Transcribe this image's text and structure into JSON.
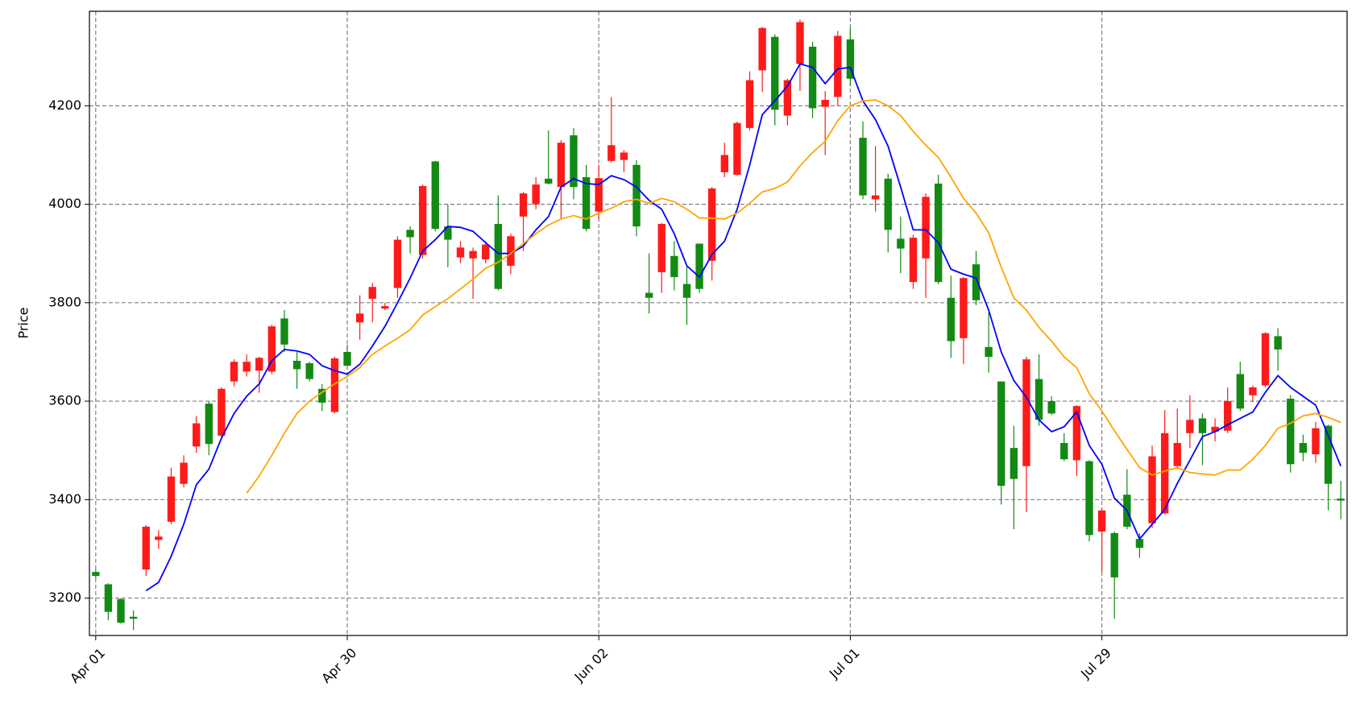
{
  "chart_data": {
    "type": "candlestick",
    "y_label": "Price",
    "categories": [
      "Apr 01",
      null,
      null,
      null,
      null,
      null,
      null,
      null,
      null,
      null,
      null,
      null,
      null,
      null,
      null,
      null,
      null,
      null,
      null,
      null,
      "Apr 30",
      null,
      null,
      null,
      null,
      null,
      null,
      null,
      null,
      null,
      null,
      null,
      null,
      null,
      null,
      null,
      null,
      null,
      null,
      null,
      "Jun 02",
      null,
      null,
      null,
      null,
      null,
      null,
      null,
      null,
      null,
      null,
      null,
      null,
      null,
      null,
      null,
      null,
      null,
      null,
      null,
      "Jul 01",
      null,
      null,
      null,
      null,
      null,
      null,
      null,
      null,
      null,
      null,
      null,
      null,
      null,
      null,
      null,
      null,
      null,
      null,
      null,
      "Jul 29",
      null,
      null,
      null,
      null,
      null,
      null,
      null,
      null,
      null,
      null,
      null,
      null,
      null,
      null,
      null,
      null,
      null,
      null,
      null
    ],
    "open": [
      3253,
      3228,
      3198,
      3162,
      3258,
      3318,
      3355,
      3432,
      3508,
      3595,
      3530,
      3640,
      3660,
      3662,
      3660,
      3768,
      3682,
      3677,
      3625,
      3578,
      3700,
      3760,
      3808,
      3788,
      3830,
      3948,
      3897,
      4087,
      3955,
      3892,
      3890,
      3888,
      3960,
      3875,
      3975,
      4000,
      4052,
      4035,
      4140,
      4055,
      3985,
      4088,
      4090,
      4080,
      3820,
      3862,
      3895,
      3838,
      3920,
      3885,
      4065,
      4060,
      4155,
      4272,
      4340,
      4180,
      4285,
      4320,
      4198,
      4218,
      4335,
      4135,
      4010,
      4052,
      3930,
      3842,
      3890,
      4042,
      3810,
      3728,
      3878,
      3710,
      3640,
      3505,
      3468,
      3645,
      3600,
      3515,
      3480,
      3478,
      3335,
      3332,
      3410,
      3320,
      3352,
      3372,
      3468,
      3535,
      3565,
      3538,
      3540,
      3655,
      3612,
      3632,
      3732,
      3605,
      3515,
      3492,
      3550,
      3402
    ],
    "high": [
      3258,
      3230,
      3200,
      3175,
      3348,
      3338,
      3465,
      3490,
      3570,
      3600,
      3628,
      3685,
      3695,
      3690,
      3755,
      3785,
      3700,
      3680,
      3635,
      3690,
      3715,
      3815,
      3840,
      3800,
      3935,
      3955,
      4040,
      4088,
      4000,
      3925,
      3912,
      3925,
      4018,
      3940,
      4025,
      4055,
      4150,
      4130,
      4155,
      4080,
      4080,
      4218,
      4110,
      4090,
      3900,
      3962,
      3925,
      3875,
      3920,
      4035,
      4125,
      4168,
      4270,
      4360,
      4345,
      4255,
      4375,
      4330,
      4230,
      4352,
      4358,
      4168,
      4118,
      4062,
      3975,
      3938,
      4022,
      4060,
      3855,
      3852,
      3905,
      3780,
      3640,
      3550,
      3690,
      3695,
      3610,
      3535,
      3592,
      3480,
      3380,
      3335,
      3462,
      3332,
      3510,
      3582,
      3585,
      3612,
      3575,
      3565,
      3628,
      3680,
      3632,
      3740,
      3748,
      3612,
      3532,
      3558,
      3552,
      3438
    ],
    "low": [
      3240,
      3155,
      3148,
      3135,
      3245,
      3300,
      3350,
      3425,
      3495,
      3490,
      3525,
      3630,
      3650,
      3617,
      3655,
      3700,
      3625,
      3640,
      3580,
      3575,
      3670,
      3725,
      3760,
      3785,
      3810,
      3900,
      3890,
      3945,
      3872,
      3880,
      3808,
      3880,
      3825,
      3858,
      3905,
      3990,
      4040,
      3970,
      4010,
      3945,
      3970,
      4085,
      4065,
      3935,
      3778,
      3820,
      3825,
      3755,
      3820,
      3845,
      4055,
      4058,
      4150,
      4228,
      4160,
      4160,
      4230,
      4175,
      4100,
      4200,
      4240,
      4010,
      3985,
      3902,
      3860,
      3828,
      3810,
      3838,
      3688,
      3675,
      3795,
      3658,
      3390,
      3340,
      3375,
      3550,
      3572,
      3478,
      3448,
      3315,
      3252,
      3158,
      3340,
      3282,
      3342,
      3370,
      3462,
      3505,
      3470,
      3518,
      3535,
      3580,
      3598,
      3628,
      3662,
      3455,
      3478,
      3475,
      3378,
      3360
    ],
    "close": [
      3245,
      3172,
      3150,
      3158,
      3345,
      3325,
      3447,
      3475,
      3555,
      3513,
      3625,
      3680,
      3680,
      3688,
      3752,
      3715,
      3665,
      3645,
      3597,
      3687,
      3672,
      3778,
      3832,
      3793,
      3928,
      3933,
      4037,
      3950,
      3928,
      3912,
      3905,
      3918,
      3828,
      3935,
      4022,
      4040,
      4042,
      4125,
      4035,
      3950,
      4053,
      4120,
      4105,
      3955,
      3810,
      3960,
      3852,
      3810,
      3828,
      4032,
      4100,
      4165,
      4252,
      4358,
      4192,
      4252,
      4370,
      4195,
      4212,
      4342,
      4255,
      4018,
      4018,
      3948,
      3910,
      3932,
      4015,
      3842,
      3722,
      3850,
      3805,
      3690,
      3428,
      3442,
      3685,
      3562,
      3575,
      3482,
      3590,
      3328,
      3378,
      3242,
      3345,
      3302,
      3488,
      3535,
      3515,
      3562,
      3535,
      3548,
      3600,
      3585,
      3628,
      3738,
      3705,
      3472,
      3495,
      3545,
      3432,
      3398
    ],
    "up_color": "#ff1a1a",
    "down_color": "#138a13",
    "lines": [
      {
        "color": "#0000ff",
        "values": [
          null,
          null,
          null,
          null,
          3215,
          3232,
          3285,
          3350,
          3430,
          3462,
          3525,
          3575,
          3610,
          3635,
          3682,
          3705,
          3702,
          3695,
          3672,
          3662,
          3655,
          3675,
          3712,
          3752,
          3800,
          3850,
          3905,
          3928,
          3955,
          3953,
          3945,
          3922,
          3900,
          3900,
          3915,
          3948,
          3975,
          4035,
          4052,
          4042,
          4040,
          4058,
          4050,
          4035,
          4008,
          3990,
          3940,
          3875,
          3852,
          3898,
          3925,
          3990,
          4080,
          4182,
          4210,
          4240,
          4285,
          4278,
          4245,
          4275,
          4278,
          4210,
          4172,
          4118,
          4035,
          3948,
          3948,
          3922,
          3868,
          3858,
          3850,
          3785,
          3700,
          3642,
          3608,
          3562,
          3538,
          3548,
          3578,
          3510,
          3472,
          3403,
          3378,
          3320,
          3350,
          3380,
          3433,
          3480,
          3528,
          3538,
          3552,
          3565,
          3578,
          3618,
          3652,
          3628,
          3610,
          3592,
          3530,
          3468
        ]
      },
      {
        "color": "#ffa500",
        "values": [
          null,
          null,
          null,
          null,
          null,
          null,
          null,
          null,
          null,
          null,
          null,
          null,
          3413,
          3448,
          3490,
          3535,
          3575,
          3600,
          3618,
          3635,
          3650,
          3668,
          3695,
          3712,
          3728,
          3745,
          3775,
          3792,
          3808,
          3828,
          3848,
          3870,
          3882,
          3900,
          3920,
          3940,
          3958,
          3970,
          3977,
          3970,
          3982,
          3992,
          4005,
          4010,
          4002,
          4012,
          4005,
          3990,
          3972,
          3972,
          3970,
          3982,
          4002,
          4025,
          4032,
          4045,
          4078,
          4105,
          4128,
          4170,
          4200,
          4210,
          4212,
          4200,
          4180,
          4148,
          4120,
          4095,
          4055,
          4012,
          3982,
          3942,
          3872,
          3810,
          3785,
          3750,
          3722,
          3690,
          3668,
          3615,
          3580,
          3540,
          3502,
          3465,
          3450,
          3458,
          3465,
          3455,
          3452,
          3450,
          3460,
          3460,
          3482,
          3510,
          3545,
          3555,
          3570,
          3575,
          3567,
          3557
        ]
      }
    ],
    "ylim": [
      3124,
      4392
    ],
    "yticks": [
      3200,
      3400,
      3600,
      3800,
      4000,
      4200
    ],
    "grid": true
  }
}
